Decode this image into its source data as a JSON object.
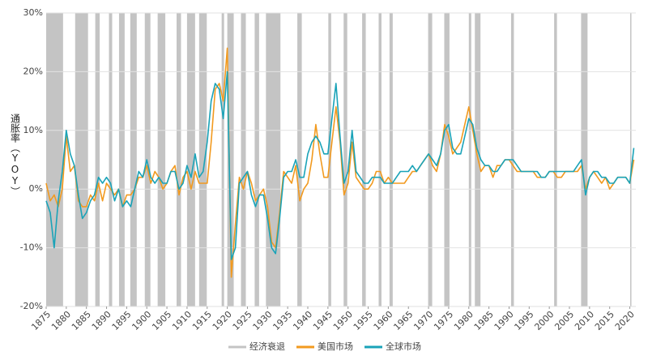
{
  "chart_data": {
    "type": "line",
    "y_label": "通胀率（YOY）",
    "x": [
      1875,
      1876,
      1877,
      1878,
      1879,
      1880,
      1881,
      1882,
      1883,
      1884,
      1885,
      1886,
      1887,
      1888,
      1889,
      1890,
      1891,
      1892,
      1893,
      1894,
      1895,
      1896,
      1897,
      1898,
      1899,
      1900,
      1901,
      1902,
      1903,
      1904,
      1905,
      1906,
      1907,
      1908,
      1909,
      1910,
      1911,
      1912,
      1913,
      1914,
      1915,
      1916,
      1917,
      1918,
      1919,
      1920,
      1921,
      1922,
      1923,
      1924,
      1925,
      1926,
      1927,
      1928,
      1929,
      1930,
      1931,
      1932,
      1933,
      1934,
      1935,
      1936,
      1937,
      1938,
      1939,
      1940,
      1941,
      1942,
      1943,
      1944,
      1945,
      1946,
      1947,
      1948,
      1949,
      1950,
      1951,
      1952,
      1953,
      1954,
      1955,
      1956,
      1957,
      1958,
      1959,
      1960,
      1961,
      1962,
      1963,
      1964,
      1965,
      1966,
      1967,
      1968,
      1969,
      1970,
      1971,
      1972,
      1973,
      1974,
      1975,
      1976,
      1977,
      1978,
      1979,
      1980,
      1981,
      1982,
      1983,
      1984,
      1985,
      1986,
      1987,
      1988,
      1989,
      1990,
      1991,
      1992,
      1993,
      1994,
      1995,
      1996,
      1997,
      1998,
      1999,
      2000,
      2001,
      2002,
      2003,
      2004,
      2005,
      2006,
      2007,
      2008,
      2009,
      2010,
      2011,
      2012,
      2013,
      2014,
      2015,
      2016,
      2017,
      2018,
      2019,
      2020,
      2021
    ],
    "series": [
      {
        "name": "美国市场",
        "color": "#f29a1f",
        "values": [
          1,
          -2,
          -1,
          -3,
          0,
          9,
          3,
          4,
          -2,
          -3,
          -3,
          -1,
          -2,
          1,
          -2,
          1,
          0,
          -1,
          0,
          -3,
          -1,
          -1,
          0,
          2,
          2,
          4,
          1,
          3,
          2,
          0,
          1,
          3,
          4,
          -1,
          2,
          3,
          0,
          3,
          1,
          1,
          1,
          8,
          17,
          18,
          15,
          24,
          -15,
          -6,
          2,
          0,
          3,
          1,
          -2,
          -1,
          0,
          -3,
          -9,
          -10,
          -4,
          3,
          2,
          1,
          4,
          -2,
          0,
          1,
          5,
          11,
          6,
          2,
          2,
          8,
          14,
          8,
          -1,
          1,
          8,
          2,
          1,
          0,
          0,
          1,
          3,
          3,
          1,
          2,
          1,
          1,
          1,
          1,
          2,
          3,
          3,
          4,
          5,
          6,
          4,
          3,
          6,
          11,
          9,
          6,
          7,
          8,
          11,
          14,
          10,
          6,
          3,
          4,
          4,
          2,
          4,
          4,
          5,
          5,
          4,
          3,
          3,
          3,
          3,
          3,
          2,
          2,
          2,
          3,
          3,
          2,
          2,
          3,
          3,
          3,
          3,
          4,
          0,
          2,
          3,
          2,
          1,
          2,
          0,
          1,
          2,
          2,
          2,
          1,
          5
        ]
      },
      {
        "name": "全球市场",
        "color": "#1aa3b8",
        "values": [
          -2,
          -4,
          -10,
          -2,
          3,
          10,
          6,
          4,
          -1,
          -5,
          -4,
          -2,
          -1,
          2,
          1,
          2,
          1,
          -2,
          0,
          -3,
          -2,
          -3,
          0,
          3,
          2,
          5,
          2,
          1,
          2,
          1,
          1,
          3,
          3,
          0,
          1,
          4,
          2,
          6,
          2,
          3,
          8,
          15,
          18,
          17,
          12,
          20,
          -12,
          -10,
          1,
          2,
          3,
          -1,
          -3,
          -1,
          -1,
          -5,
          -10,
          -11,
          -5,
          2,
          3,
          3,
          5,
          2,
          2,
          6,
          8,
          9,
          8,
          6,
          6,
          12,
          18,
          9,
          1,
          3,
          10,
          3,
          2,
          1,
          1,
          2,
          2,
          2,
          1,
          1,
          1,
          2,
          3,
          3,
          3,
          4,
          3,
          4,
          5,
          6,
          5,
          4,
          6,
          10,
          11,
          7,
          6,
          6,
          9,
          12,
          11,
          7,
          5,
          4,
          4,
          3,
          3,
          4,
          5,
          5,
          5,
          4,
          3,
          3,
          3,
          3,
          3,
          2,
          2,
          3,
          3,
          3,
          3,
          3,
          3,
          3,
          4,
          5,
          -1,
          2,
          3,
          3,
          2,
          2,
          1,
          1,
          2,
          2,
          2,
          1,
          7
        ]
      }
    ],
    "shaded_periods": {
      "name": "经济衰退",
      "color": "#c4c4c4",
      "ranges": [
        [
          1875,
          1879.2
        ],
        [
          1882.2,
          1885.4
        ],
        [
          1887.2,
          1888.3
        ],
        [
          1890.6,
          1891.4
        ],
        [
          1893.1,
          1894.5
        ],
        [
          1895.9,
          1897.5
        ],
        [
          1899.5,
          1900.9
        ],
        [
          1902.7,
          1904.6
        ],
        [
          1907.4,
          1908.5
        ],
        [
          1910,
          1912
        ],
        [
          1913,
          1914.9
        ],
        [
          1918.6,
          1919.2
        ],
        [
          1920,
          1921.6
        ],
        [
          1923.4,
          1924.6
        ],
        [
          1926.8,
          1927.9
        ],
        [
          1929.6,
          1933.2
        ],
        [
          1937.4,
          1938.5
        ],
        [
          1945.1,
          1945.8
        ],
        [
          1948.9,
          1949.8
        ],
        [
          1953.5,
          1954.4
        ],
        [
          1957.6,
          1958.3
        ],
        [
          1960.3,
          1961.1
        ],
        [
          1969.9,
          1970.9
        ],
        [
          1973.9,
          1975.2
        ],
        [
          1980,
          1980.6
        ],
        [
          1981.5,
          1982.9
        ],
        [
          1990.5,
          1991.2
        ],
        [
          2001.2,
          2001.9
        ],
        [
          2007.9,
          2009.5
        ],
        [
          2020.1,
          2020.4
        ]
      ]
    },
    "xlim": [
      1875,
      2021.5
    ],
    "xticks": [
      1875,
      1880,
      1885,
      1890,
      1895,
      1900,
      1905,
      1910,
      1915,
      1920,
      1925,
      1930,
      1935,
      1940,
      1945,
      1950,
      1955,
      1960,
      1965,
      1970,
      1975,
      1980,
      1985,
      1990,
      1995,
      2000,
      2005,
      2010,
      2015,
      2020
    ],
    "ylim": [
      -20,
      30
    ],
    "yticks": [
      {
        "value": -20,
        "label": "-20%"
      },
      {
        "value": -10,
        "label": "-10%"
      },
      {
        "value": 0,
        "label": "0%"
      },
      {
        "value": 10,
        "label": "10%"
      },
      {
        "value": 20,
        "label": "20%"
      },
      {
        "value": 30,
        "label": "30%"
      }
    ],
    "grid": true
  }
}
